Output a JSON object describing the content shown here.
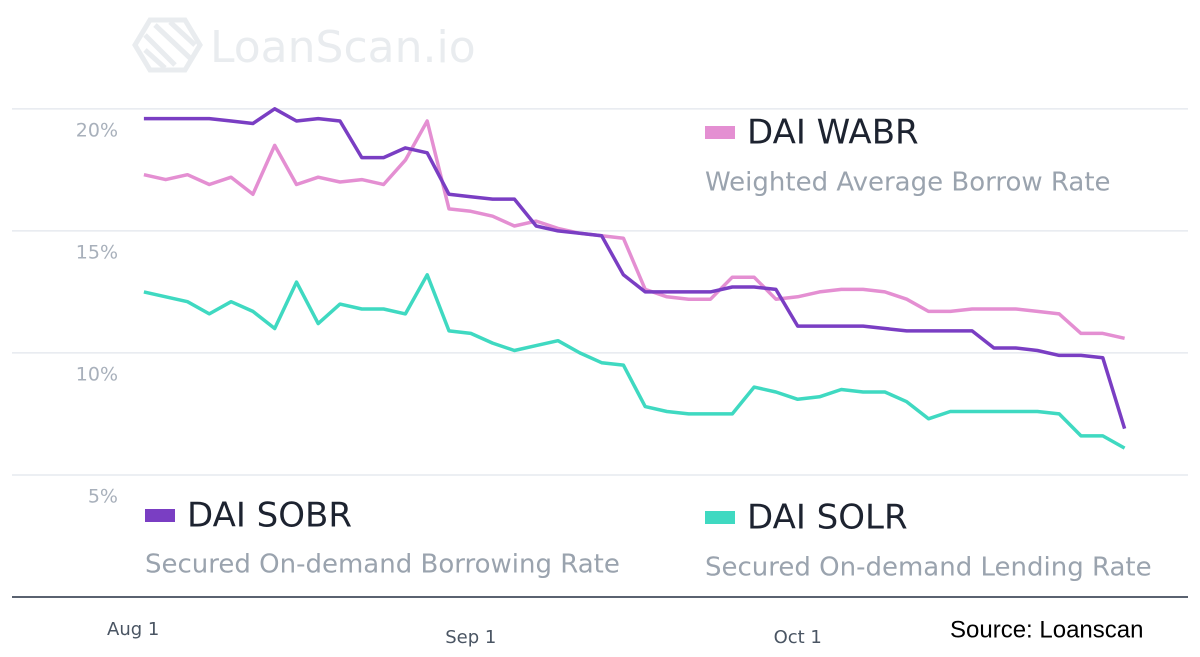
{
  "chart_data": {
    "type": "line",
    "watermark": "LoanScan.io",
    "source": "Source: Loanscan",
    "x": [
      1,
      3,
      5,
      7,
      9,
      11,
      13,
      15,
      17,
      19,
      21,
      23,
      25,
      27,
      29,
      31,
      33,
      35,
      37,
      39,
      41,
      43,
      45,
      47,
      49,
      51,
      53,
      55,
      57,
      59,
      61,
      63,
      65,
      67,
      69,
      71,
      73,
      75,
      77,
      79,
      81,
      83,
      85,
      87,
      89,
      91
    ],
    "xlim": [
      0,
      97
    ],
    "xticks": [
      {
        "value": 0,
        "label": "Aug 1"
      },
      {
        "value": 31,
        "label": "Sep 1"
      },
      {
        "value": 61,
        "label": "Oct 1"
      }
    ],
    "ylim": [
      0,
      22
    ],
    "yticks": [
      {
        "value": 5,
        "label": "5%"
      },
      {
        "value": 10,
        "label": "10%"
      },
      {
        "value": 15,
        "label": "15%"
      },
      {
        "value": 20,
        "label": "20%"
      }
    ],
    "grid": true,
    "series": [
      {
        "name": "DAI WABR",
        "description": "Weighted Average Borrow Rate",
        "color": "#e48fd2",
        "values": [
          17.3,
          17.1,
          17.3,
          16.9,
          17.2,
          16.5,
          18.5,
          16.9,
          17.2,
          17.0,
          17.1,
          16.9,
          17.9,
          19.5,
          15.9,
          15.8,
          15.6,
          15.2,
          15.4,
          15.1,
          14.9,
          14.8,
          14.7,
          12.6,
          12.3,
          12.2,
          12.2,
          13.1,
          13.1,
          12.2,
          12.3,
          12.5,
          12.6,
          12.6,
          12.5,
          12.2,
          11.7,
          11.7,
          11.8,
          11.8,
          11.8,
          11.7,
          11.6,
          10.8,
          10.8,
          10.6
        ]
      },
      {
        "name": "DAI SOBR",
        "description": "Secured On-demand Borrowing Rate",
        "color": "#7a3ec3",
        "values": [
          19.6,
          19.6,
          19.6,
          19.6,
          19.5,
          19.4,
          20.0,
          19.5,
          19.6,
          19.5,
          18.0,
          18.0,
          18.4,
          18.2,
          16.5,
          16.4,
          16.3,
          16.3,
          15.2,
          15.0,
          14.9,
          14.8,
          13.2,
          12.5,
          12.5,
          12.5,
          12.5,
          12.7,
          12.7,
          12.6,
          11.1,
          11.1,
          11.1,
          11.1,
          11.0,
          10.9,
          10.9,
          10.9,
          10.9,
          10.2,
          10.2,
          10.1,
          9.9,
          9.9,
          9.8,
          6.9
        ]
      },
      {
        "name": "DAI SOLR",
        "description": "Secured On-demand Lending Rate",
        "color": "#3fd9c1",
        "values": [
          12.5,
          12.3,
          12.1,
          11.6,
          12.1,
          11.7,
          11.0,
          12.9,
          11.2,
          12.0,
          11.8,
          11.8,
          11.6,
          13.2,
          10.9,
          10.8,
          10.4,
          10.1,
          10.3,
          10.5,
          10.0,
          9.6,
          9.5,
          7.8,
          7.6,
          7.5,
          7.5,
          7.5,
          8.6,
          8.4,
          8.1,
          8.2,
          8.5,
          8.4,
          8.4,
          8.0,
          7.3,
          7.6,
          7.6,
          7.6,
          7.6,
          7.6,
          7.5,
          6.6,
          6.6,
          6.1
        ]
      }
    ]
  }
}
